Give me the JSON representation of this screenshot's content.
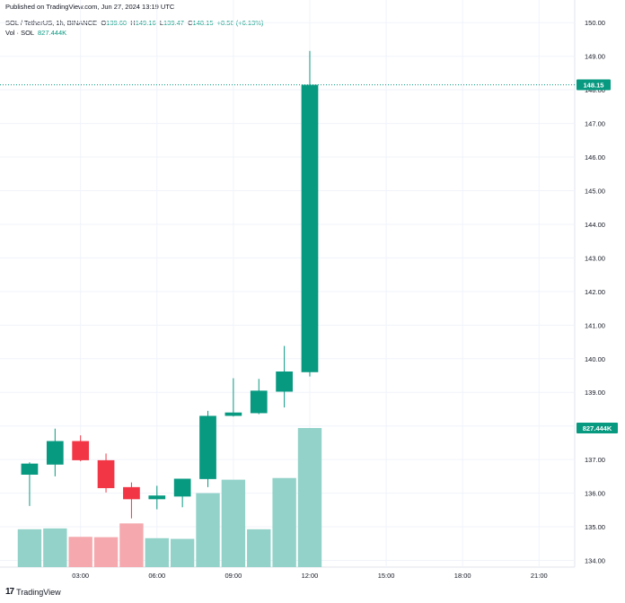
{
  "published": "Published on TradingView.com, Jun 27, 2024 13:19 UTC",
  "legend": {
    "symbol": "SOL / TetherUS, 1h, BINANCE",
    "o_label": "O",
    "o": "139.60",
    "h_label": "H",
    "h": "149.16",
    "l_label": "L",
    "l": "139.47",
    "c_label": "C",
    "c": "148.15",
    "change": "+8.56 (+6.13%)",
    "vol_label": "Vol · SOL",
    "vol": "827.444K"
  },
  "logo": {
    "mark": "17",
    "text": "TradingView"
  },
  "colors": {
    "up": "#089981",
    "down": "#f23645",
    "vol_up": "#92d2c9",
    "vol_down": "#f5a8ad",
    "grid": "#f0f3fa",
    "axis_text": "#131722"
  },
  "chart_data": {
    "type": "candlestick",
    "y_ticks": [
      "134.00",
      "135.00",
      "136.00",
      "137.00",
      "138.00",
      "139.00",
      "140.00",
      "141.00",
      "142.00",
      "143.00",
      "144.00",
      "145.00",
      "146.00",
      "147.00",
      "148.00",
      "149.00",
      "150.00"
    ],
    "ylim": [
      133.8,
      150.3
    ],
    "x_ticks": [
      "03:00",
      "06:00",
      "09:00",
      "12:00",
      "15:00",
      "18:00",
      "21:00"
    ],
    "x_tick_hours": [
      3,
      6,
      9,
      12,
      15,
      18,
      21
    ],
    "xlim": [
      0.05,
      22.4
    ],
    "price_label": "148.15",
    "volume_label": "827.444K",
    "volume_max": 827.444,
    "candles": [
      {
        "t": 1,
        "o": 136.55,
        "h": 136.92,
        "l": 135.62,
        "c": 136.88,
        "v": 225
      },
      {
        "t": 2,
        "o": 136.85,
        "h": 137.92,
        "l": 136.5,
        "c": 137.55,
        "v": 230
      },
      {
        "t": 3,
        "o": 137.55,
        "h": 137.72,
        "l": 136.95,
        "c": 136.98,
        "v": 180
      },
      {
        "t": 4,
        "o": 136.98,
        "h": 137.18,
        "l": 136.02,
        "c": 136.15,
        "v": 178
      },
      {
        "t": 5,
        "o": 136.18,
        "h": 136.32,
        "l": 135.25,
        "c": 135.82,
        "v": 260
      },
      {
        "t": 6,
        "o": 135.82,
        "h": 136.22,
        "l": 135.52,
        "c": 135.93,
        "v": 172
      },
      {
        "t": 7,
        "o": 135.9,
        "h": 136.43,
        "l": 135.58,
        "c": 136.43,
        "v": 168
      },
      {
        "t": 8,
        "o": 136.42,
        "h": 138.45,
        "l": 136.18,
        "c": 138.3,
        "v": 440
      },
      {
        "t": 9,
        "o": 138.3,
        "h": 139.42,
        "l": 138.28,
        "c": 138.4,
        "v": 520
      },
      {
        "t": 10,
        "o": 138.38,
        "h": 139.4,
        "l": 138.35,
        "c": 139.05,
        "v": 225
      },
      {
        "t": 11,
        "o": 139.02,
        "h": 140.38,
        "l": 138.55,
        "c": 139.62,
        "v": 530
      },
      {
        "t": 12,
        "o": 139.6,
        "h": 149.16,
        "l": 139.47,
        "c": 148.15,
        "v": 827.444
      }
    ]
  }
}
